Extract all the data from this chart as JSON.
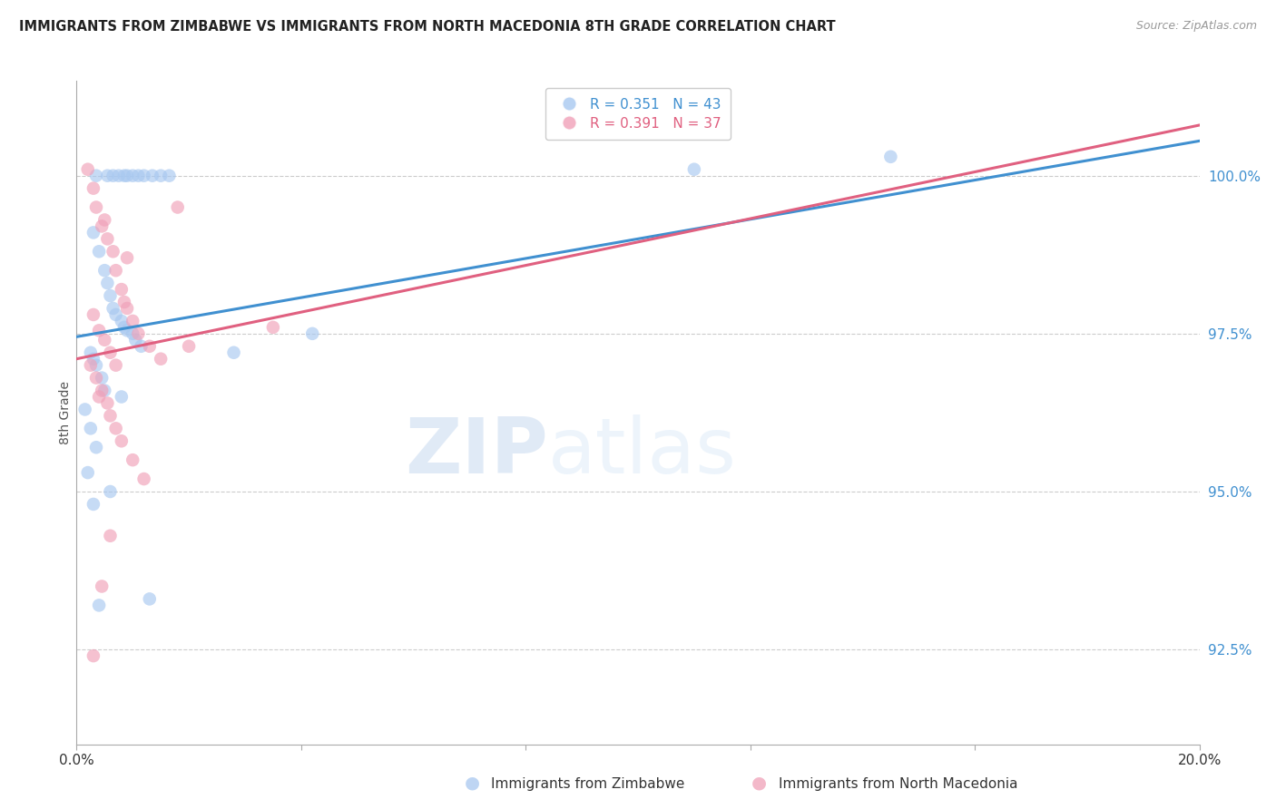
{
  "title": "IMMIGRANTS FROM ZIMBABWE VS IMMIGRANTS FROM NORTH MACEDONIA 8TH GRADE CORRELATION CHART",
  "source": "Source: ZipAtlas.com",
  "ylabel": "8th Grade",
  "right_yticks": [
    92.5,
    95.0,
    97.5,
    100.0
  ],
  "right_yticklabels": [
    "92.5%",
    "95.0%",
    "97.5%",
    "100.0%"
  ],
  "xlim": [
    0.0,
    20.0
  ],
  "ylim": [
    91.0,
    101.5
  ],
  "legend_blue_r": "R = 0.351",
  "legend_blue_n": "N = 43",
  "legend_pink_r": "R = 0.391",
  "legend_pink_n": "N = 37",
  "legend_label_blue": "Immigrants from Zimbabwe",
  "legend_label_pink": "Immigrants from North Macedonia",
  "blue_color": "#a8c8f0",
  "pink_color": "#f0a0b8",
  "blue_line_color": "#4090d0",
  "pink_line_color": "#e06080",
  "watermark_zip": "ZIP",
  "watermark_atlas": "atlas",
  "blue_scatter_x": [
    0.35,
    0.55,
    0.65,
    0.75,
    0.85,
    0.9,
    1.0,
    1.1,
    1.2,
    1.35,
    1.5,
    1.65,
    0.3,
    0.4,
    0.5,
    0.55,
    0.6,
    0.65,
    0.7,
    0.8,
    0.85,
    0.9,
    1.0,
    1.05,
    1.15,
    0.25,
    0.3,
    0.35,
    0.45,
    0.5,
    0.15,
    0.25,
    0.35,
    0.2,
    0.3,
    2.8,
    4.2,
    11.0,
    14.5,
    0.4,
    0.6,
    0.8,
    1.3
  ],
  "blue_scatter_y": [
    100.0,
    100.0,
    100.0,
    100.0,
    100.0,
    100.0,
    100.0,
    100.0,
    100.0,
    100.0,
    100.0,
    100.0,
    99.1,
    98.8,
    98.5,
    98.3,
    98.1,
    97.9,
    97.8,
    97.7,
    97.6,
    97.55,
    97.5,
    97.4,
    97.3,
    97.2,
    97.1,
    97.0,
    96.8,
    96.6,
    96.3,
    96.0,
    95.7,
    95.3,
    94.8,
    97.2,
    97.5,
    100.1,
    100.3,
    93.2,
    95.0,
    96.5,
    93.3
  ],
  "pink_scatter_x": [
    0.2,
    0.3,
    0.35,
    0.45,
    0.55,
    0.65,
    0.7,
    0.8,
    0.85,
    0.9,
    1.0,
    1.1,
    1.3,
    1.5,
    0.25,
    0.35,
    0.45,
    0.55,
    0.6,
    0.7,
    0.8,
    1.0,
    1.2,
    0.3,
    0.4,
    0.5,
    0.6,
    0.7,
    2.0,
    3.5,
    0.4,
    0.5,
    0.9,
    0.6,
    1.8,
    0.45,
    0.3
  ],
  "pink_scatter_y": [
    100.1,
    99.8,
    99.5,
    99.2,
    99.0,
    98.8,
    98.5,
    98.2,
    98.0,
    97.9,
    97.7,
    97.5,
    97.3,
    97.1,
    97.0,
    96.8,
    96.6,
    96.4,
    96.2,
    96.0,
    95.8,
    95.5,
    95.2,
    97.8,
    97.55,
    97.4,
    97.2,
    97.0,
    97.3,
    97.6,
    96.5,
    99.3,
    98.7,
    94.3,
    99.5,
    93.5,
    92.4
  ],
  "blue_trend_x0": 0.0,
  "blue_trend_x1": 20.0,
  "blue_trend_y0": 97.45,
  "blue_trend_y1": 100.55,
  "pink_trend_x0": 0.0,
  "pink_trend_x1": 20.0,
  "pink_trend_y0": 97.1,
  "pink_trend_y1": 100.8,
  "xtick_positions": [
    0,
    4,
    8,
    12,
    16,
    20
  ],
  "xtick_labels": [
    "0.0%",
    "",
    "",
    "",
    "",
    "20.0%"
  ]
}
